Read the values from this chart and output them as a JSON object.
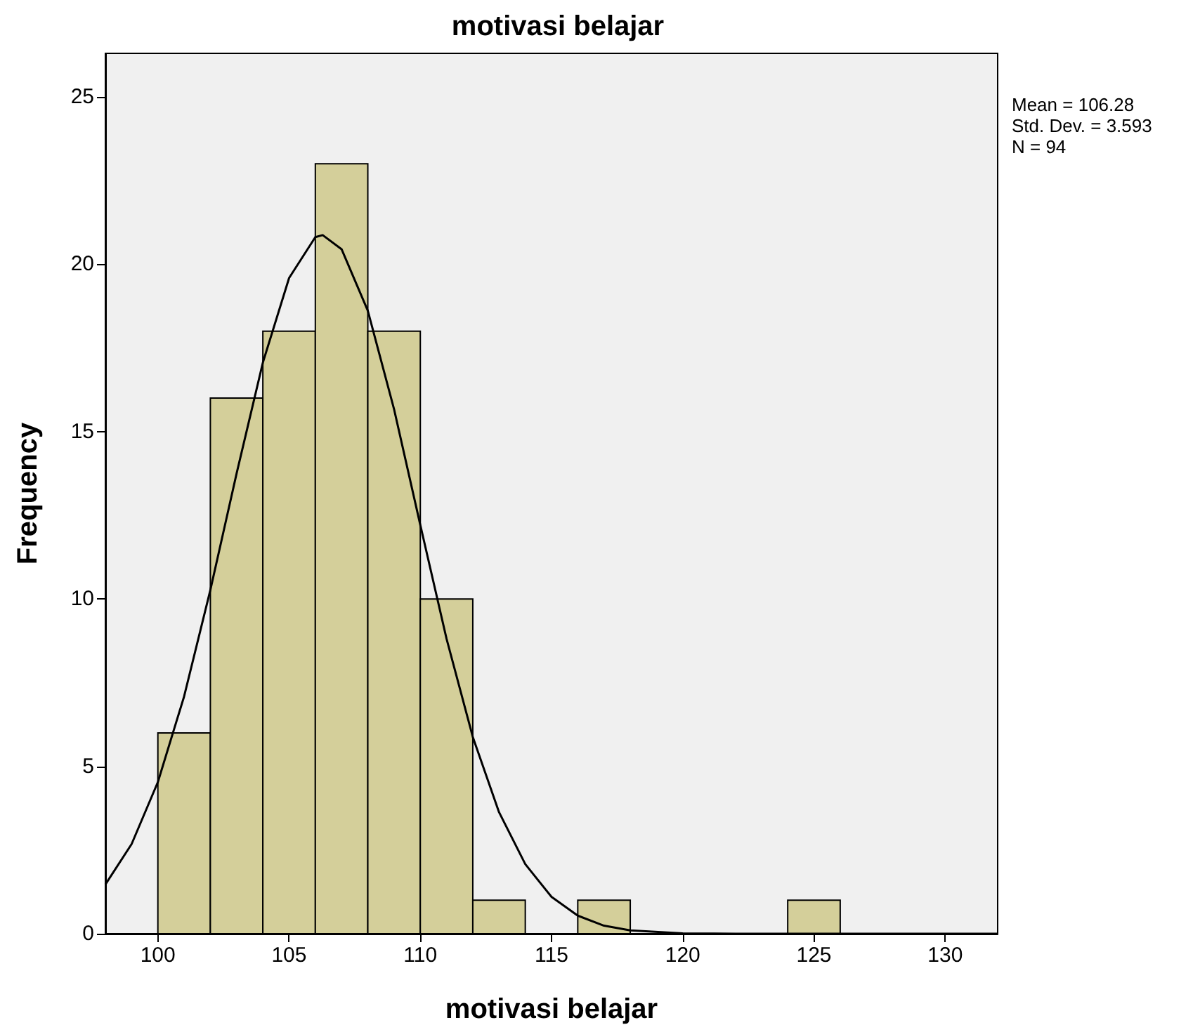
{
  "chart_data": {
    "type": "histogram",
    "title": "motivasi belajar",
    "xlabel": "motivasi belajar",
    "ylabel": "Frequency",
    "bins": [
      100,
      102,
      104,
      106,
      108,
      110,
      112,
      114,
      116,
      118,
      120,
      122,
      124,
      126
    ],
    "series": [
      {
        "color": "#d4cf9a",
        "values": [
          6,
          16,
          18,
          23,
          18,
          10,
          1,
          0,
          1,
          0,
          0,
          0,
          1
        ]
      },
      {
        "type": "line",
        "color": "#000000",
        "x": [
          98,
          99,
          100,
          101,
          102,
          103,
          104,
          105,
          106,
          106.28,
          107,
          108,
          109,
          110,
          111,
          112,
          113,
          114,
          115,
          116,
          117,
          118,
          120,
          122,
          125,
          132
        ],
        "values": [
          1.47,
          2.68,
          4.53,
          7.09,
          10.27,
          13.75,
          17.06,
          19.59,
          20.81,
          20.87,
          20.45,
          18.61,
          15.67,
          12.21,
          8.81,
          5.88,
          3.63,
          2.08,
          1.1,
          0.54,
          0.24,
          0.1,
          0.01,
          0,
          0,
          0
        ]
      }
    ],
    "xlim": [
      98,
      132
    ],
    "xticks": [
      100,
      105,
      110,
      115,
      120,
      125,
      130
    ],
    "ylim": [
      0,
      26.3
    ],
    "yticks": [
      0,
      5,
      10,
      15,
      20,
      25
    ],
    "grid": false,
    "marker": "none",
    "line_style": "solid",
    "annotations": [
      "Mean = 106.28",
      "Std. Dev. = 3.593",
      "N = 94"
    ]
  }
}
